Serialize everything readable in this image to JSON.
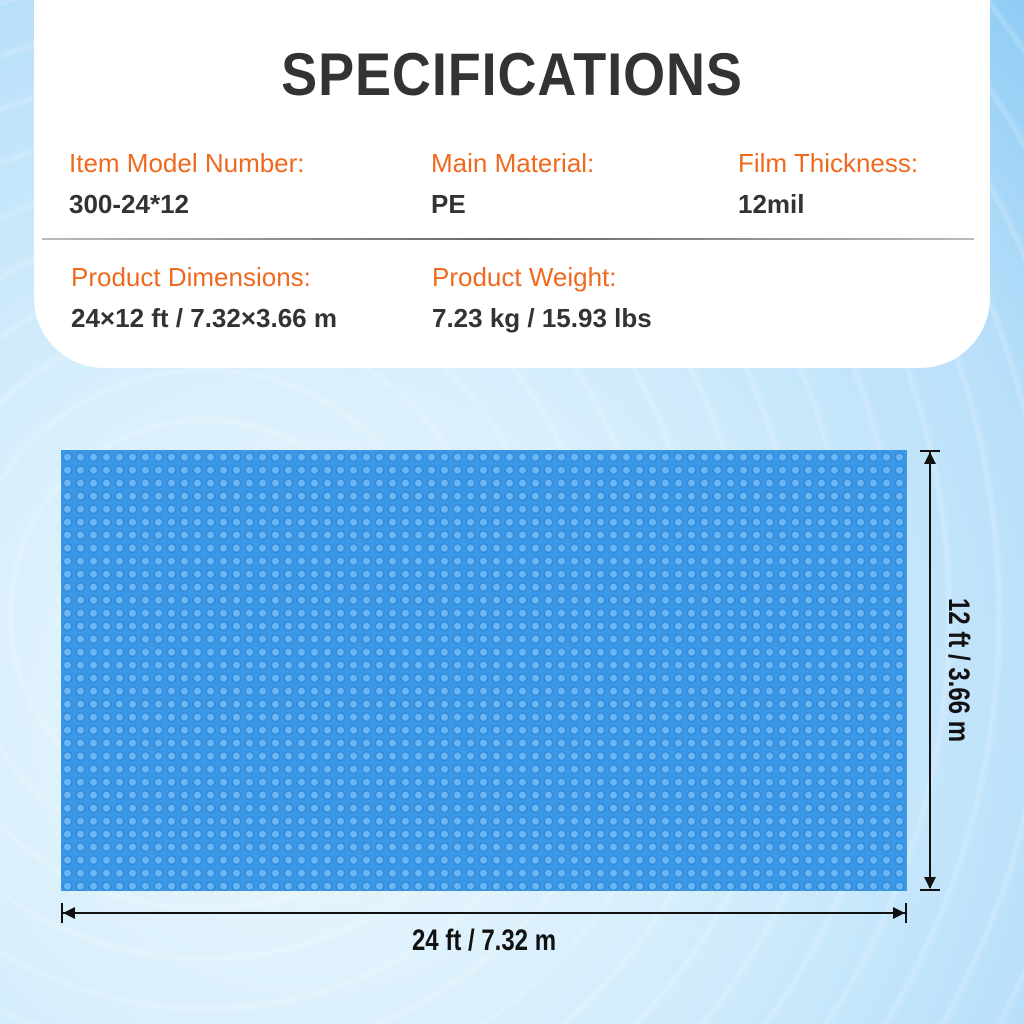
{
  "title": "SPECIFICATIONS",
  "specs": [
    {
      "label": "Item Model Number:",
      "value": "300-24*12"
    },
    {
      "label": "Main Material:",
      "value": "PE"
    },
    {
      "label": "Film Thickness:",
      "value": "12mil"
    },
    {
      "label": "Product Dimensions:",
      "value": "24×12 ft / 7.32×3.66 m"
    },
    {
      "label": "Product Weight:",
      "value": "7.23 kg / 15.93 lbs"
    }
  ],
  "dimensions": {
    "width": "24 ft / 7.32 m",
    "height": "12 ft / 3.66 m"
  },
  "colors": {
    "label": "#ee6a1f",
    "cover": "#3a98e6"
  }
}
